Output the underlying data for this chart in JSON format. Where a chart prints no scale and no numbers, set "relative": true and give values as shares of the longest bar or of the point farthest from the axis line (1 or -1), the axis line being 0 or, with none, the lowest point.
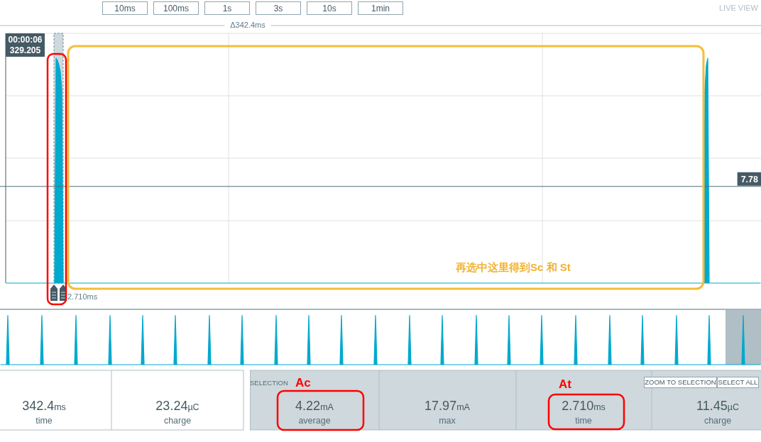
{
  "chart_data": [
    {
      "type": "other",
      "annotations": [
        "10ms",
        "100ms",
        "1s",
        "3s",
        "10s",
        "1min",
        "LIVE VIEW"
      ]
    },
    {
      "type": "area",
      "relative": true,
      "categories": [
        null,
        null,
        null,
        null,
        null,
        null,
        null,
        null,
        null,
        null,
        null,
        null,
        null,
        null,
        null,
        null,
        null,
        null,
        null,
        null,
        null,
        null,
        null,
        null,
        null,
        null,
        null,
        null,
        null,
        null,
        null,
        null,
        null,
        null,
        null,
        null,
        null,
        null,
        null,
        null,
        null,
        null,
        null,
        null,
        null,
        null,
        null,
        null,
        null,
        null,
        null,
        null,
        null,
        null,
        null,
        null,
        null,
        null,
        null,
        null,
        null,
        null,
        null,
        null,
        null,
        null,
        null,
        null,
        null,
        null,
        null,
        null,
        null,
        null,
        null,
        null,
        null,
        null,
        null,
        null,
        null,
        null,
        null,
        null,
        null,
        null,
        null,
        null,
        null,
        null,
        null,
        null,
        null,
        null,
        null,
        null,
        null,
        null,
        null,
        null,
        null,
        null,
        null,
        null,
        null,
        null,
        null,
        null,
        null,
        null,
        null,
        null,
        null,
        null,
        null,
        null,
        null,
        null,
        null,
        null,
        null,
        null,
        null,
        null,
        null,
        null,
        null,
        null,
        null,
        null,
        null,
        null,
        null,
        null,
        null,
        null,
        null,
        null,
        null,
        null,
        null,
        null,
        null,
        null,
        null,
        null,
        null,
        null,
        null,
        null,
        null,
        null,
        null,
        null,
        null,
        null,
        null,
        null,
        null,
        null,
        null,
        null,
        null,
        null,
        null,
        null,
        null,
        null,
        null,
        null,
        null,
        null,
        null,
        null,
        null,
        null,
        null,
        null,
        null,
        null,
        null,
        null,
        null,
        null,
        null,
        null,
        null,
        null,
        null,
        null,
        null,
        null,
        null,
        null,
        null,
        null,
        null,
        null,
        null,
        null,
        null,
        null,
        null,
        null,
        null,
        null,
        null,
        null,
        null,
        null,
        null,
        null,
        null,
        null,
        null,
        null,
        null,
        null,
        null,
        null,
        null,
        null,
        null,
        null,
        null,
        null,
        null,
        null,
        null,
        null,
        null,
        null,
        null,
        null,
        null,
        null,
        null,
        null,
        null,
        null,
        null,
        null,
        null,
        null,
        null,
        null,
        null,
        null,
        null,
        null,
        null,
        null,
        null,
        null,
        null,
        null,
        null,
        null,
        null,
        null,
        null,
        null,
        null,
        null,
        null,
        null,
        null,
        null,
        null,
        null,
        null,
        null,
        null,
        null,
        null,
        null,
        null,
        null,
        null,
        null,
        null,
        null,
        null,
        null,
        null,
        null,
        null,
        null,
        null,
        null,
        null,
        null,
        null,
        null,
        null,
        null,
        null,
        null,
        null,
        null,
        null,
        null,
        null,
        null,
        null,
        null,
        null,
        null,
        null,
        null,
        null,
        null,
        null,
        null,
        null,
        null,
        null,
        null,
        null,
        null,
        null,
        null,
        null,
        null,
        null,
        null,
        null,
        null,
        null,
        null,
        null,
        null,
        null,
        null,
        null,
        null,
        null,
        null,
        null,
        null,
        null,
        null,
        null,
        null,
        null,
        null,
        null,
        null,
        null,
        null,
        null,
        null,
        null,
        null,
        null,
        null,
        null,
        null,
        null,
        null,
        null,
        null,
        null,
        null,
        null,
        null,
        null,
        null,
        null,
        null,
        null,
        null,
        null,
        null,
        null,
        null,
        null,
        null,
        null,
        null,
        null,
        null,
        null,
        null,
        null,
        null,
        null,
        null,
        null,
        null,
        null,
        null,
        null,
        null,
        null,
        null,
        null,
        null,
        null,
        null,
        null,
        null,
        null,
        null,
        null,
        null,
        null,
        null,
        null,
        null,
        null,
        null,
        null,
        null,
        null,
        null,
        null,
        null,
        null,
        null,
        null,
        null,
        null,
        null,
        null,
        null,
        null,
        null,
        null,
        null,
        null,
        null,
        null,
        null,
        null,
        null,
        null,
        null,
        null,
        null,
        null,
        null,
        null,
        null,
        null,
        null,
        null,
        null,
        null,
        null,
        null,
        null,
        null,
        null,
        null,
        null,
        null,
        null,
        null,
        null,
        null,
        null,
        null,
        null,
        null,
        null,
        null,
        null,
        null,
        null,
        null,
        null,
        null,
        null,
        null,
        null,
        null,
        null,
        null,
        null,
        null,
        null,
        null,
        null,
        null,
        null,
        null,
        null,
        null,
        null,
        null,
        null,
        null,
        null,
        null,
        null,
        null,
        null,
        null,
        null,
        null,
        null,
        null,
        null,
        null,
        null,
        null,
        null,
        null,
        null,
        null,
        null,
        null,
        null,
        null,
        null,
        null,
        null,
        null,
        null,
        null,
        null,
        null,
        null,
        null,
        null,
        null,
        null,
        null,
        null,
        null,
        null
      ],
      "series": [
        {
          "color": "#00a9ce",
          "values": [
            0,
            0,
            0,
            0,
            0,
            0,
            0,
            0,
            0,
            0,
            0,
            0,
            0,
            0,
            0,
            0,
            0,
            0,
            0,
            0,
            0,
            0,
            0,
            0,
            0,
            0,
            0,
            0,
            0,
            0,
            0,
            0,
            0,
            0,
            0,
            1,
            0.99,
            0.97,
            0.94,
            0.86,
            0,
            0,
            0,
            0,
            0,
            0,
            0,
            0,
            0,
            0,
            0,
            0,
            0,
            0,
            0,
            0,
            0,
            0,
            0,
            0,
            0,
            0,
            0,
            0,
            0,
            0,
            0,
            0,
            0,
            0,
            0,
            0,
            0,
            0,
            0,
            0,
            0,
            0,
            0,
            0,
            0,
            0,
            0,
            0,
            0,
            0,
            0,
            0,
            0,
            0,
            0,
            0,
            0,
            0,
            0,
            0,
            0,
            0,
            0,
            0,
            0,
            0,
            0,
            0,
            0,
            0,
            0,
            0,
            0,
            0,
            0,
            0,
            0,
            0,
            0,
            0,
            0,
            0,
            0,
            0,
            0,
            0,
            0,
            0,
            0,
            0,
            0,
            0,
            0,
            0,
            0,
            0,
            0,
            0,
            0,
            0,
            0,
            0,
            0,
            0,
            0,
            0,
            0,
            0,
            0,
            0,
            0,
            0,
            0,
            0,
            0,
            0,
            0,
            0,
            0,
            0,
            0,
            0,
            0,
            0,
            0,
            0,
            0,
            0,
            0,
            0,
            0,
            0,
            0,
            0,
            0,
            0,
            0,
            0,
            0,
            0,
            0,
            0,
            0,
            0,
            0,
            0,
            0,
            0,
            0,
            0,
            0,
            0,
            0,
            0,
            0,
            0,
            0,
            0,
            0,
            0,
            0,
            0,
            0,
            0,
            0,
            0,
            0,
            0,
            0,
            0,
            0,
            0,
            0,
            0,
            0,
            0,
            0,
            0,
            0,
            0,
            0,
            0,
            0,
            0,
            0,
            0,
            0,
            0,
            0,
            0,
            0,
            0,
            0,
            0,
            0,
            0,
            0,
            0,
            0,
            0,
            0,
            0,
            0,
            0,
            0,
            0,
            0,
            0,
            0,
            0,
            0,
            0,
            0,
            0,
            0,
            0,
            0,
            0,
            0,
            0,
            0,
            0,
            0,
            0,
            0,
            0,
            0,
            0,
            0,
            0,
            0,
            0,
            0,
            0,
            0,
            0,
            0,
            0,
            0,
            0,
            0,
            0,
            0,
            0,
            0,
            0,
            0,
            0,
            0,
            0,
            0,
            0,
            0,
            0,
            0,
            0,
            0,
            0,
            0,
            0,
            0,
            0,
            0,
            0,
            0,
            0,
            0,
            0,
            0,
            0,
            0,
            0,
            0,
            0,
            0,
            0,
            0,
            0,
            0,
            0,
            0,
            0,
            0,
            0,
            0,
            0,
            0,
            0,
            0,
            0,
            0,
            0,
            0,
            0,
            0,
            0,
            0,
            0,
            0,
            0,
            0,
            0,
            0,
            0,
            0,
            0,
            0,
            0,
            0,
            0,
            0,
            0,
            0,
            0,
            0,
            0,
            0,
            0,
            0,
            0,
            0,
            0,
            0,
            0,
            0,
            0,
            0,
            0,
            0,
            0,
            0,
            0,
            0,
            0,
            0,
            0,
            0,
            0,
            0,
            0,
            0,
            0,
            0,
            0,
            0,
            0,
            0,
            0,
            0,
            0,
            0,
            0,
            0,
            0,
            0,
            0,
            0,
            0,
            0,
            0,
            0,
            0,
            0,
            0,
            0,
            0,
            0,
            0,
            0,
            0,
            0,
            0,
            0,
            0,
            0,
            0,
            0,
            0,
            0,
            0,
            0,
            0,
            0,
            0,
            0,
            0,
            0,
            0,
            0,
            0,
            0,
            0,
            0,
            0,
            0,
            0,
            0,
            0,
            0,
            0,
            0,
            0,
            0,
            0,
            0,
            0,
            0,
            0,
            0,
            0,
            0,
            0,
            0,
            0,
            0,
            0,
            0,
            0,
            0,
            0,
            0,
            0,
            0,
            0,
            0,
            0,
            0,
            0,
            0,
            0,
            0,
            0,
            0,
            0,
            0,
            0,
            0,
            0,
            0,
            0,
            0,
            0,
            0,
            0,
            0,
            0,
            0,
            0,
            0,
            0,
            0,
            0,
            0,
            0,
            0,
            0,
            0.86,
            0.97,
            1,
            0,
            0,
            0,
            0,
            0,
            0,
            0,
            0,
            0,
            0,
            0,
            0,
            0,
            0,
            0,
            0,
            0,
            0,
            0,
            0,
            0,
            0,
            0,
            0,
            0,
            0,
            0,
            0,
            0,
            0,
            0,
            0,
            0,
            0,
            0,
            0,
            0
          ]
        }
      ],
      "grid": true,
      "ref_lines": [
        {
          "axis": "y",
          "value": 0.43,
          "color": "#546e7a"
        }
      ],
      "annotations": [
        "Δ342.4ms",
        "00:00:06\n329.205",
        "再选中这里得到Sc 和 St",
        "2.710ms",
        {
          "text": "7.78",
          "y": 0.43
        }
      ]
    },
    {
      "type": "area",
      "relative": true,
      "categories": [
        null,
        null,
        null,
        null,
        null,
        null,
        null,
        null,
        null,
        null,
        null,
        null,
        null,
        null,
        null,
        null,
        null,
        null,
        null,
        null,
        null,
        null,
        null,
        null,
        null,
        null,
        null,
        null,
        null,
        null,
        null,
        null,
        null,
        null,
        null,
        null,
        null,
        null,
        null,
        null,
        null,
        null,
        null,
        null,
        null,
        null,
        null,
        null,
        null,
        null,
        null,
        null,
        null,
        null,
        null,
        null,
        null,
        null,
        null,
        null,
        null,
        null,
        null,
        null,
        null,
        null,
        null,
        null,
        null,
        null,
        null,
        null,
        null,
        null,
        null,
        null,
        null,
        null,
        null,
        null,
        null,
        null,
        null,
        null,
        null,
        null,
        null,
        null,
        null,
        null,
        null,
        null,
        null,
        null,
        null,
        null,
        null,
        null,
        null,
        null,
        null,
        null,
        null,
        null,
        null,
        null,
        null,
        null,
        null,
        null,
        null,
        null,
        null,
        null,
        null,
        null,
        null,
        null,
        null,
        null,
        null,
        null,
        null,
        null,
        null,
        null,
        null,
        null,
        null,
        null,
        null,
        null,
        null,
        null,
        null,
        null,
        null,
        null,
        null,
        null,
        null,
        null,
        null,
        null,
        null,
        null,
        null,
        null,
        null,
        null,
        null,
        null,
        null,
        null,
        null,
        null,
        null,
        null,
        null,
        null,
        null,
        null,
        null,
        null,
        null,
        null,
        null,
        null,
        null,
        null,
        null,
        null,
        null,
        null,
        null,
        null,
        null,
        null,
        null,
        null,
        null,
        null,
        null,
        null,
        null,
        null,
        null,
        null,
        null,
        null,
        null,
        null,
        null,
        null,
        null,
        null,
        null,
        null,
        null,
        null,
        null,
        null,
        null,
        null,
        null,
        null,
        null,
        null,
        null,
        null,
        null,
        null,
        null,
        null,
        null,
        null,
        null,
        null,
        null,
        null,
        null,
        null,
        null,
        null,
        null,
        null,
        null,
        null,
        null,
        null,
        null,
        null,
        null,
        null,
        null,
        null,
        null,
        null,
        null,
        null,
        null,
        null,
        null,
        null,
        null,
        null,
        null,
        null,
        null,
        null,
        null,
        null,
        null,
        null,
        null,
        null,
        null,
        null,
        null,
        null,
        null,
        null,
        null,
        null,
        null,
        null,
        null,
        null,
        null,
        null,
        null,
        null,
        null,
        null,
        null,
        null,
        null,
        null,
        null,
        null,
        null,
        null,
        null,
        null,
        null,
        null,
        null,
        null,
        null,
        null,
        null,
        null,
        null,
        null,
        null,
        null,
        null,
        null,
        null,
        null,
        null,
        null,
        null,
        null,
        null,
        null,
        null,
        null,
        null,
        null,
        null,
        null,
        null,
        null,
        null,
        null,
        null,
        null,
        null,
        null,
        null,
        null,
        null,
        null,
        null,
        null,
        null,
        null,
        null,
        null,
        null,
        null,
        null,
        null,
        null,
        null,
        null,
        null,
        null,
        null,
        null,
        null,
        null,
        null,
        null,
        null,
        null,
        null,
        null,
        null,
        null,
        null,
        null,
        null,
        null,
        null,
        null,
        null,
        null,
        null,
        null,
        null,
        null,
        null,
        null,
        null,
        null,
        null,
        null,
        null,
        null,
        null,
        null,
        null,
        null,
        null,
        null,
        null,
        null,
        null,
        null,
        null,
        null,
        null,
        null,
        null,
        null,
        null,
        null,
        null,
        null,
        null,
        null,
        null,
        null,
        null,
        null,
        null,
        null,
        null,
        null,
        null,
        null,
        null,
        null,
        null,
        null,
        null,
        null,
        null,
        null,
        null,
        null,
        null,
        null,
        null,
        null,
        null,
        null,
        null,
        null,
        null,
        null,
        null,
        null,
        null,
        null,
        null,
        null,
        null,
        null,
        null,
        null,
        null,
        null,
        null,
        null,
        null,
        null,
        null,
        null,
        null,
        null,
        null,
        null,
        null,
        null,
        null,
        null,
        null,
        null,
        null,
        null,
        null,
        null,
        null,
        null,
        null,
        null,
        null,
        null,
        null,
        null,
        null,
        null,
        null,
        null,
        null,
        null,
        null,
        null,
        null,
        null,
        null,
        null,
        null,
        null,
        null,
        null,
        null,
        null,
        null,
        null,
        null,
        null,
        null,
        null,
        null,
        null,
        null,
        null,
        null,
        null,
        null,
        null,
        null,
        null,
        null,
        null,
        null,
        null,
        null,
        null,
        null,
        null,
        null,
        null,
        null,
        null,
        null,
        null,
        null,
        null,
        null,
        null,
        null,
        null,
        null,
        null,
        null,
        null,
        null,
        null,
        null,
        null,
        null,
        null,
        null,
        null,
        null,
        null,
        null,
        null,
        null,
        null,
        null
      ],
      "series": [
        {
          "color": "#00a9ce",
          "values": [
            0,
            0,
            0,
            0,
            0,
            1,
            0,
            0,
            0,
            0,
            0,
            0,
            0,
            0,
            0,
            0,
            0,
            0,
            0,
            0,
            0,
            0,
            0,
            0,
            0,
            0,
            0,
            0,
            0,
            1,
            0,
            0,
            0,
            0,
            0,
            0,
            0,
            0,
            0,
            0,
            0,
            0,
            0,
            0,
            0,
            0,
            0,
            0,
            0,
            0,
            0,
            0,
            0,
            1,
            0,
            0,
            0,
            0,
            0,
            0,
            0,
            0,
            0,
            0,
            0,
            0,
            0,
            0,
            0,
            0,
            0,
            0,
            0,
            0,
            0,
            0,
            0,
            1,
            0,
            0,
            0,
            0,
            0,
            0,
            0,
            0,
            0,
            0,
            0,
            0,
            0,
            0,
            0,
            0,
            0,
            0,
            0,
            0,
            0,
            0,
            1,
            0,
            0,
            0,
            0,
            0,
            0,
            0,
            0,
            0,
            0,
            0,
            0,
            0,
            0,
            0,
            0,
            0,
            0,
            0,
            0,
            0,
            0,
            1,
            0,
            0,
            0,
            0,
            0,
            0,
            0,
            0,
            0,
            0,
            0,
            0,
            0,
            0,
            0,
            0,
            0,
            0,
            0,
            0,
            0,
            0,
            0,
            1,
            0,
            0,
            0,
            0,
            0,
            0,
            0,
            0,
            0,
            0,
            0,
            0,
            0,
            0,
            0,
            0,
            0,
            0,
            0,
            0,
            0,
            0,
            1,
            0,
            0,
            0,
            0,
            0,
            0,
            0,
            0,
            0,
            0,
            0,
            0,
            0,
            0,
            0,
            0,
            0,
            0,
            0,
            0,
            0,
            0,
            0,
            1,
            0,
            0,
            0,
            0,
            0,
            0,
            0,
            0,
            0,
            0,
            0,
            0,
            0,
            0,
            0,
            0,
            0,
            0,
            0,
            0,
            0,
            0,
            1,
            0,
            0,
            0,
            0,
            0,
            0,
            0,
            0,
            0,
            0,
            0,
            0,
            0,
            0,
            0,
            0,
            0,
            0,
            0,
            0,
            0,
            0,
            1,
            0,
            0,
            0,
            0,
            0,
            0,
            0,
            0,
            0,
            0,
            0,
            0,
            0,
            0,
            0,
            0,
            0,
            0,
            0,
            0,
            0,
            0,
            0,
            1,
            0,
            0,
            0,
            0,
            0,
            0,
            0,
            0,
            0,
            0,
            0,
            0,
            0,
            0,
            0,
            0,
            0,
            0,
            0,
            0,
            0,
            0,
            0,
            1,
            0,
            0,
            0,
            0,
            0,
            0,
            0,
            0,
            0,
            0,
            0,
            0,
            0,
            0,
            0,
            0,
            0,
            0,
            0,
            0,
            0,
            0,
            1,
            0,
            0,
            0,
            0,
            0,
            0,
            0,
            0,
            0,
            0,
            0,
            0,
            0,
            0,
            0,
            0,
            0,
            0,
            0,
            0,
            0,
            0,
            0,
            1,
            0,
            0,
            0,
            0,
            0,
            0,
            0,
            0,
            0,
            0,
            0,
            0,
            0,
            0,
            0,
            0,
            0,
            0,
            0,
            0,
            0,
            0,
            1,
            0,
            0,
            0,
            0,
            0,
            0,
            0,
            0,
            0,
            0,
            0,
            0,
            0,
            0,
            0,
            0,
            0,
            0,
            0,
            0,
            0,
            0,
            1,
            0,
            0,
            0,
            0,
            0,
            0,
            0,
            0,
            0,
            0,
            0,
            0,
            0,
            0,
            0,
            0,
            0,
            0,
            0,
            0,
            0,
            0,
            0,
            1,
            0,
            0,
            0,
            0,
            0,
            0,
            0,
            0,
            0,
            0,
            0,
            0,
            0,
            0,
            0,
            0,
            0,
            0,
            0,
            0,
            0,
            0,
            0,
            1,
            0,
            0,
            0,
            0,
            0,
            0,
            0,
            0,
            0,
            0,
            0,
            0,
            0,
            0,
            0,
            0,
            0,
            0,
            0,
            0,
            0,
            0,
            1,
            0,
            0,
            0,
            0,
            0,
            0,
            0,
            0,
            0,
            0,
            0,
            0,
            0,
            0,
            0,
            0,
            0,
            0,
            0,
            0,
            0,
            0,
            0,
            1,
            0,
            0,
            0,
            0,
            0,
            0,
            0,
            0,
            0,
            0,
            0,
            0,
            0,
            0,
            0,
            0,
            0,
            0,
            0,
            0,
            0,
            0,
            1,
            0,
            0,
            0,
            0,
            0,
            0,
            0,
            0,
            0,
            0,
            0,
            0,
            0,
            0,
            0,
            0,
            0,
            0,
            0,
            0,
            0,
            0,
            0,
            1,
            0,
            0,
            0,
            0,
            0,
            0,
            0,
            0,
            0,
            0,
            0,
            0
          ]
        }
      ]
    },
    {
      "type": "other",
      "annotations": [
        "342.4ms",
        "time",
        "23.24µC",
        "charge",
        "SELECTION",
        "4.22mA",
        "average",
        "17.97mA",
        "max",
        "2.710ms",
        "time",
        "11.45µC",
        "charge",
        "ZOOM TO SELECTION",
        "SELECT ALL",
        "Ac",
        "At"
      ]
    }
  ]
}
